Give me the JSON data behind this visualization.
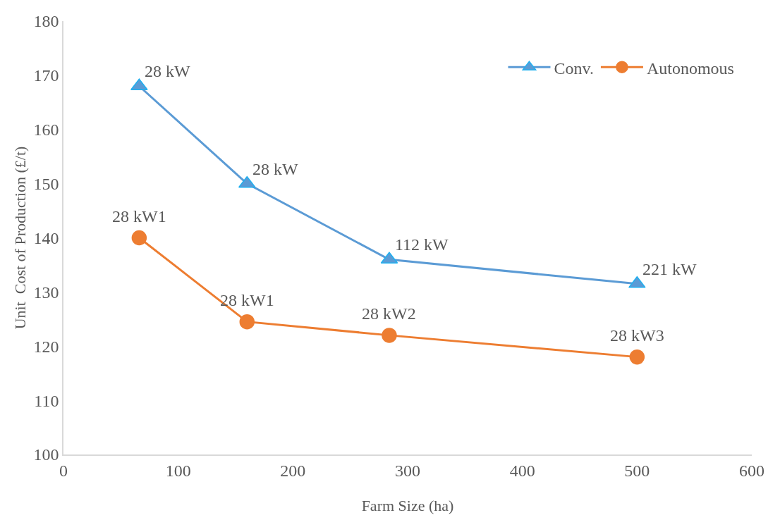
{
  "chart_data": {
    "type": "line",
    "xlabel": "Farm Size (ha)",
    "ylabel": "Unit  Cost of Production (£/t)",
    "x": [
      66,
      160,
      284,
      500
    ],
    "series": [
      {
        "name": "Conv.",
        "color": "#5b9bd5",
        "marker": "triangle",
        "values": [
          168,
          150,
          136,
          131.5
        ]
      },
      {
        "name": "Autonomous",
        "color": "#ed7d31",
        "marker": "circle",
        "values": [
          140,
          124.5,
          122,
          118
        ]
      }
    ],
    "xlim": [
      0,
      600
    ],
    "xticks": [
      0,
      100,
      200,
      300,
      400,
      500,
      600
    ],
    "ylim": [
      100,
      180
    ],
    "yticks": [
      100,
      110,
      120,
      130,
      140,
      150,
      160,
      170,
      180
    ],
    "grid": false,
    "legend": "top right",
    "line_style": "solid",
    "annotations": [
      {
        "text": "28 kW",
        "x": 66,
        "y": 168
      },
      {
        "text": "28 kW",
        "x": 160,
        "y": 150
      },
      {
        "text": "112 kW",
        "x": 284,
        "y": 136
      },
      {
        "text": "221 kW",
        "x": 500,
        "y": 131.5
      },
      {
        "text": "28 kW1",
        "x": 66,
        "y": 140
      },
      {
        "text": "28 kW1",
        "x": 160,
        "y": 124.5
      },
      {
        "text": "28 kW2",
        "x": 284,
        "y": 122
      },
      {
        "text": "28 kW3",
        "x": 500,
        "y": 118
      }
    ]
  }
}
